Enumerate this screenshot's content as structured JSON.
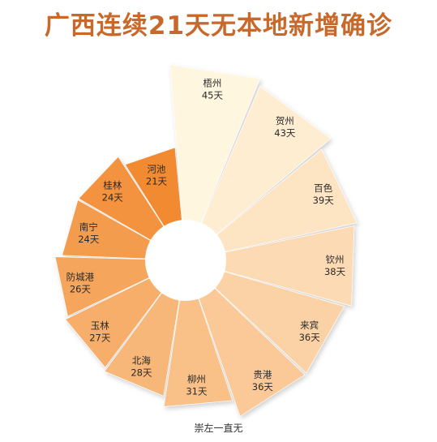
{
  "title": "广西连续21天无本地新增确诊",
  "footnote": "崇左一直无",
  "colors": {
    "title": "#c8682a",
    "darkest": "#f28a30",
    "lightest": "#fff6e0"
  },
  "chart_data": {
    "type": "polar-bar",
    "title": "广西连续21天无本地新增确诊",
    "unit": "天",
    "categories": [
      "梧州",
      "贺州",
      "百色",
      "钦州",
      "来宾",
      "贵港",
      "柳州",
      "北海",
      "玉林",
      "防城港",
      "南宁",
      "桂林",
      "河池"
    ],
    "values": [
      45,
      43,
      39,
      38,
      36,
      36,
      31,
      28,
      27,
      26,
      24,
      24,
      21
    ],
    "labels": [
      "45天",
      "43天",
      "39天",
      "38天",
      "36天",
      "36天",
      "31天",
      "28天",
      "27天",
      "26天",
      "24天",
      "24天",
      "21天"
    ]
  }
}
